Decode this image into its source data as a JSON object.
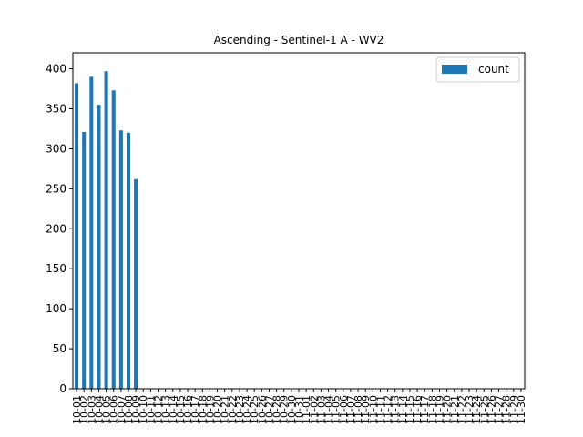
{
  "chart_data": {
    "type": "bar",
    "title": "Ascending - Sentinel-1 A - WV2",
    "xlabel": "",
    "ylabel": "",
    "ylim": [
      0,
      420
    ],
    "yticks": [
      0,
      50,
      100,
      150,
      200,
      250,
      300,
      350,
      400
    ],
    "grid": false,
    "legend": "top-right",
    "bar_color": "#1f77b4",
    "categories": [
      "10-01",
      "10-02",
      "10-03",
      "10-04",
      "10-05",
      "10-06",
      "10-07",
      "10-08",
      "10-09",
      "10-10",
      "10-11",
      "10-12",
      "10-13",
      "10-14",
      "10-15",
      "10-16",
      "10-17",
      "10-18",
      "10-19",
      "10-20",
      "10-21",
      "10-22",
      "10-23",
      "10-24",
      "10-25",
      "10-26",
      "10-27",
      "10-28",
      "10-29",
      "10-30",
      "10-31",
      "11-01",
      "11-02",
      "11-03",
      "11-04",
      "11-05",
      "11-06",
      "11-07",
      "11-08",
      "11-09",
      "11-10",
      "11-11",
      "11-12",
      "11-13",
      "11-14",
      "11-15",
      "11-16",
      "11-17",
      "11-18",
      "11-19",
      "11-20",
      "11-21",
      "11-22",
      "11-23",
      "11-24",
      "11-25",
      "11-26",
      "11-27",
      "11-28",
      "11-29",
      "11-30"
    ],
    "series": [
      {
        "name": "count",
        "values": [
          382,
          321,
          390,
          355,
          397,
          373,
          323,
          320,
          262,
          0,
          0,
          0,
          0,
          0,
          0,
          0,
          0,
          0,
          0,
          0,
          0,
          0,
          0,
          0,
          0,
          0,
          0,
          0,
          0,
          0,
          0,
          0,
          0,
          0,
          0,
          0,
          0,
          0,
          0,
          0,
          0,
          0,
          0,
          0,
          0,
          0,
          0,
          0,
          0,
          0,
          0,
          0,
          0,
          0,
          0,
          0,
          0,
          0,
          0,
          0,
          0
        ]
      }
    ]
  }
}
